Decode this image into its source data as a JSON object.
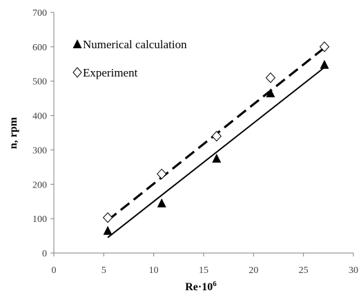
{
  "chart_data": {
    "type": "scatter",
    "xlabel_base": "Re·10",
    "xlabel_sup": "6",
    "ylabel": "n, rpm",
    "xlim": [
      0,
      30
    ],
    "ylim": [
      0,
      700
    ],
    "xticks": [
      "0",
      "5",
      "10",
      "15",
      "20",
      "25",
      "30"
    ],
    "yticks": [
      "0",
      "100",
      "200",
      "300",
      "400",
      "500",
      "600",
      "700"
    ],
    "grid": false,
    "legend_placement": "top-left",
    "series": [
      {
        "name": "Numerical calculation",
        "marker": "filled-triangle",
        "color": "#000000",
        "x": [
          5.4,
          10.8,
          16.3,
          21.7,
          27.1
        ],
        "y": [
          65,
          145,
          275,
          465,
          548
        ],
        "trendline": {
          "style": "solid",
          "x": [
            5.4,
            27.1
          ],
          "y": [
            45,
            540
          ]
        }
      },
      {
        "name": "Experiment",
        "marker": "open-diamond",
        "color": "#000000",
        "x": [
          5.4,
          10.8,
          16.3,
          21.7,
          27.1
        ],
        "y": [
          103,
          230,
          340,
          510,
          600
        ],
        "trendline": {
          "style": "dashed",
          "x": [
            5.4,
            27.1
          ],
          "y": [
            95,
            597
          ]
        }
      }
    ]
  }
}
